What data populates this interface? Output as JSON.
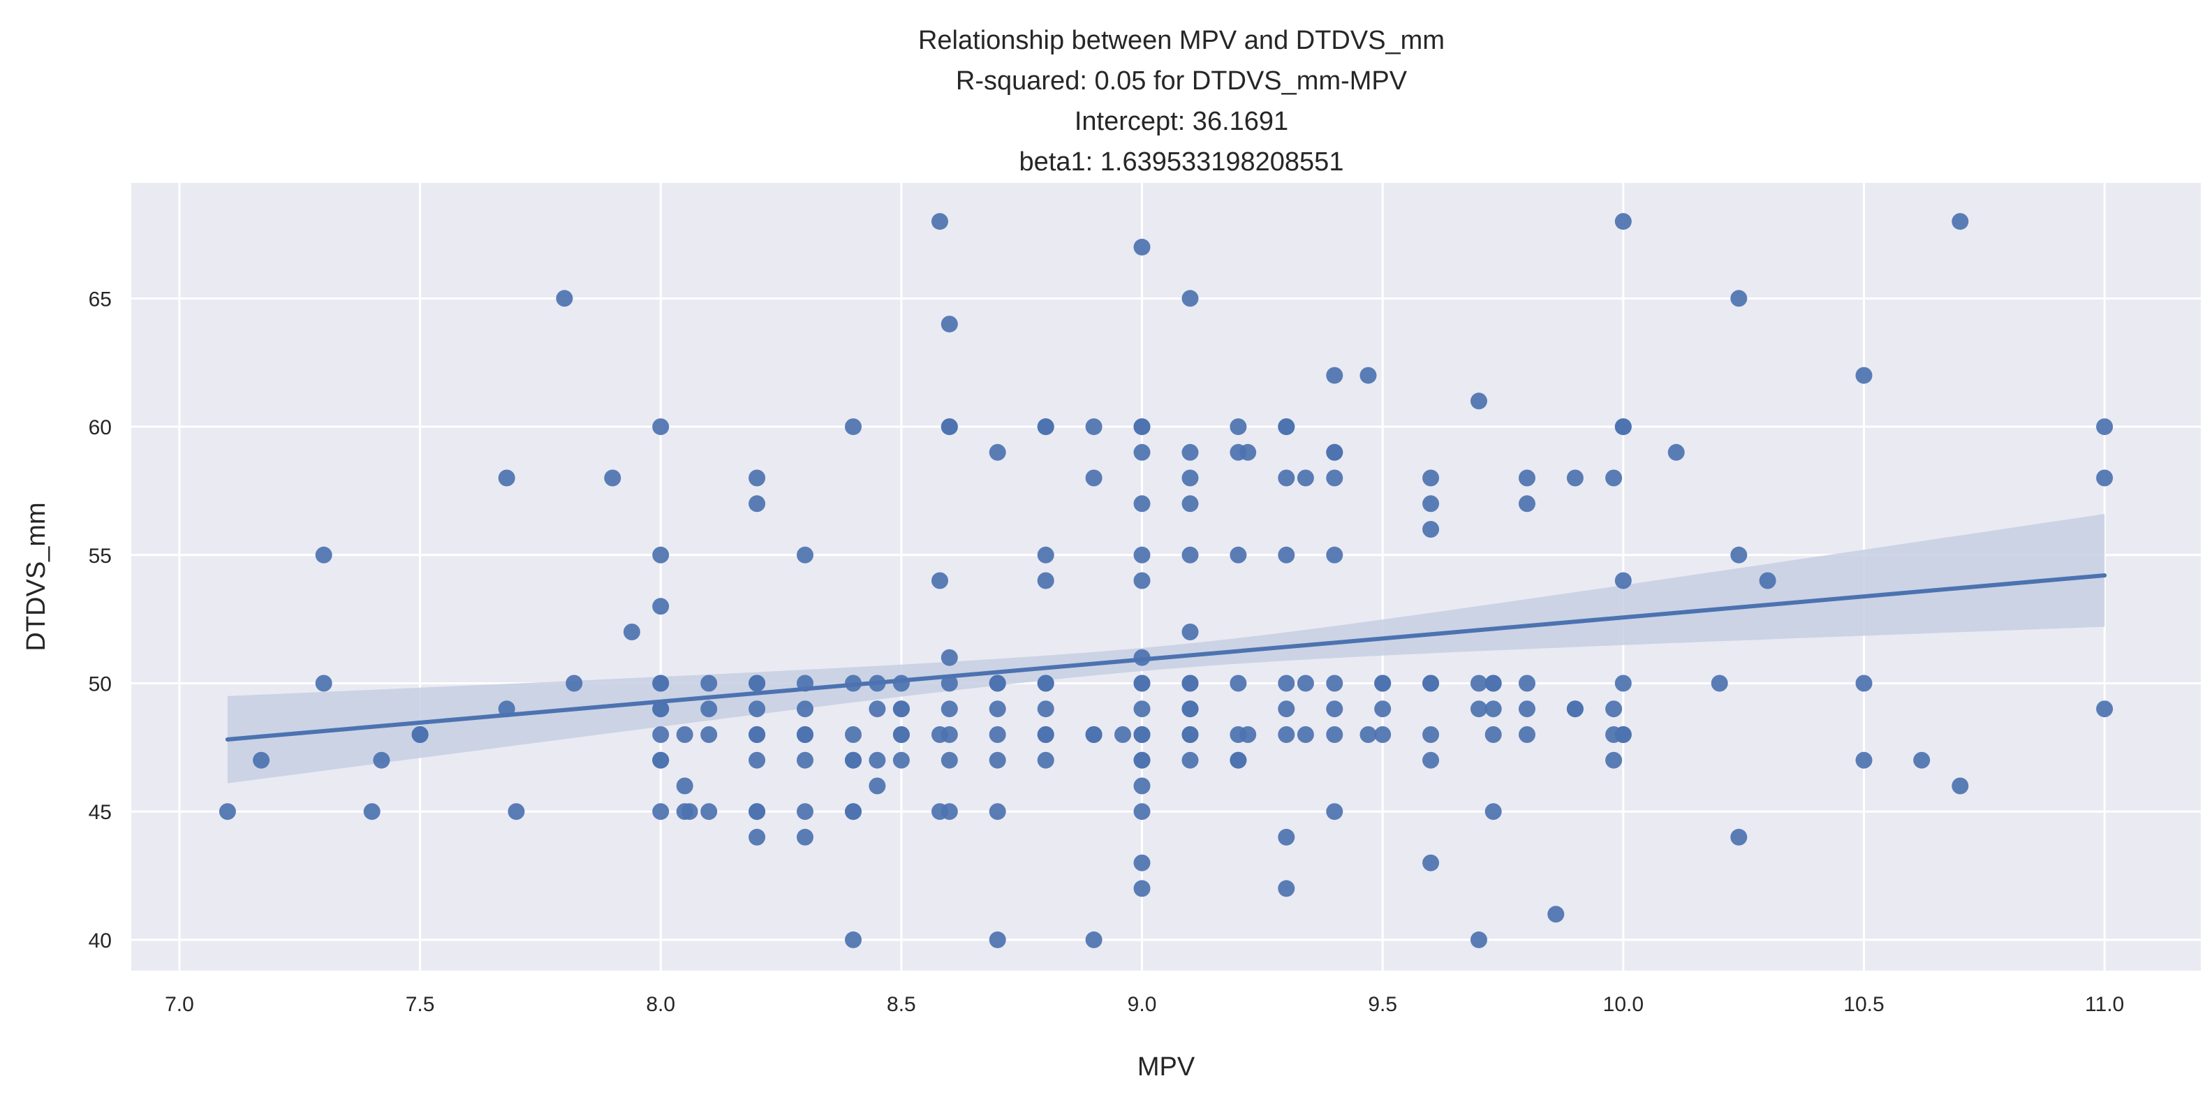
{
  "chart_data": {
    "type": "scatter",
    "title_lines": [
      "Relationship between MPV and DTDVS_mm",
      "R-squared: 0.05 for DTDVS_mm-MPV",
      "Intercept: 36.1691",
      "beta1: 1.639533198208551"
    ],
    "xlabel": "MPV",
    "ylabel": "DTDVS_mm",
    "xlim": [
      6.9,
      11.2
    ],
    "ylim": [
      38.8,
      69.5
    ],
    "x_ticks": [
      "7.0",
      "7.5",
      "8.0",
      "8.5",
      "9.0",
      "9.5",
      "10.0",
      "10.5",
      "11.0"
    ],
    "y_ticks": [
      "40",
      "45",
      "50",
      "55",
      "60",
      "65"
    ],
    "grid": true,
    "colors": {
      "background": "#eaeaf2",
      "grid": "#ffffff",
      "points": "#4c72b0",
      "line": "#4c72b0",
      "band": "#c5cfe3"
    },
    "regression": {
      "intercept": 36.1691,
      "slope": 1.639533198208551,
      "x_range": [
        7.1,
        11.0
      ],
      "ci_lower": [
        46.1,
        52.2
      ],
      "ci_upper": [
        49.5,
        56.6
      ]
    },
    "points": [
      [
        7.1,
        45
      ],
      [
        7.17,
        47
      ],
      [
        7.3,
        55
      ],
      [
        7.3,
        50
      ],
      [
        7.4,
        45
      ],
      [
        7.42,
        47
      ],
      [
        7.5,
        48
      ],
      [
        7.5,
        48
      ],
      [
        7.68,
        58
      ],
      [
        7.68,
        49
      ],
      [
        7.7,
        45
      ],
      [
        7.8,
        65
      ],
      [
        7.82,
        50
      ],
      [
        7.9,
        58
      ],
      [
        7.94,
        52
      ],
      [
        8.0,
        60
      ],
      [
        8.0,
        55
      ],
      [
        8.0,
        53
      ],
      [
        8.0,
        50
      ],
      [
        8.0,
        50
      ],
      [
        8.0,
        49
      ],
      [
        8.0,
        49
      ],
      [
        8.0,
        48
      ],
      [
        8.0,
        47
      ],
      [
        8.0,
        47
      ],
      [
        8.0,
        45
      ],
      [
        8.05,
        48
      ],
      [
        8.05,
        46
      ],
      [
        8.05,
        45
      ],
      [
        8.06,
        45
      ],
      [
        8.1,
        50
      ],
      [
        8.1,
        49
      ],
      [
        8.1,
        48
      ],
      [
        8.1,
        45
      ],
      [
        8.2,
        58
      ],
      [
        8.2,
        57
      ],
      [
        8.2,
        50
      ],
      [
        8.2,
        50
      ],
      [
        8.2,
        49
      ],
      [
        8.2,
        48
      ],
      [
        8.2,
        48
      ],
      [
        8.2,
        47
      ],
      [
        8.2,
        45
      ],
      [
        8.2,
        45
      ],
      [
        8.2,
        44
      ],
      [
        8.3,
        55
      ],
      [
        8.3,
        50
      ],
      [
        8.3,
        49
      ],
      [
        8.3,
        48
      ],
      [
        8.3,
        48
      ],
      [
        8.3,
        47
      ],
      [
        8.3,
        45
      ],
      [
        8.3,
        44
      ],
      [
        8.4,
        60
      ],
      [
        8.4,
        50
      ],
      [
        8.4,
        48
      ],
      [
        8.4,
        47
      ],
      [
        8.4,
        47
      ],
      [
        8.4,
        45
      ],
      [
        8.4,
        45
      ],
      [
        8.4,
        40
      ],
      [
        8.45,
        50
      ],
      [
        8.45,
        49
      ],
      [
        8.45,
        47
      ],
      [
        8.45,
        46
      ],
      [
        8.5,
        50
      ],
      [
        8.5,
        49
      ],
      [
        8.5,
        49
      ],
      [
        8.5,
        48
      ],
      [
        8.5,
        48
      ],
      [
        8.5,
        47
      ],
      [
        8.58,
        68
      ],
      [
        8.58,
        54
      ],
      [
        8.58,
        48
      ],
      [
        8.58,
        45
      ],
      [
        8.6,
        64
      ],
      [
        8.6,
        60
      ],
      [
        8.6,
        60
      ],
      [
        8.6,
        51
      ],
      [
        8.6,
        50
      ],
      [
        8.6,
        49
      ],
      [
        8.6,
        48
      ],
      [
        8.6,
        47
      ],
      [
        8.6,
        45
      ],
      [
        8.7,
        59
      ],
      [
        8.7,
        50
      ],
      [
        8.7,
        50
      ],
      [
        8.7,
        49
      ],
      [
        8.7,
        48
      ],
      [
        8.7,
        47
      ],
      [
        8.7,
        45
      ],
      [
        8.7,
        40
      ],
      [
        8.8,
        60
      ],
      [
        8.8,
        60
      ],
      [
        8.8,
        55
      ],
      [
        8.8,
        54
      ],
      [
        8.8,
        50
      ],
      [
        8.8,
        50
      ],
      [
        8.8,
        49
      ],
      [
        8.8,
        48
      ],
      [
        8.8,
        48
      ],
      [
        8.8,
        47
      ],
      [
        8.9,
        60
      ],
      [
        8.9,
        58
      ],
      [
        8.9,
        48
      ],
      [
        8.9,
        48
      ],
      [
        8.9,
        40
      ],
      [
        8.96,
        48
      ],
      [
        9.0,
        67
      ],
      [
        9.0,
        60
      ],
      [
        9.0,
        60
      ],
      [
        9.0,
        59
      ],
      [
        9.0,
        57
      ],
      [
        9.0,
        55
      ],
      [
        9.0,
        54
      ],
      [
        9.0,
        51
      ],
      [
        9.0,
        50
      ],
      [
        9.0,
        50
      ],
      [
        9.0,
        49
      ],
      [
        9.0,
        48
      ],
      [
        9.0,
        48
      ],
      [
        9.0,
        47
      ],
      [
        9.0,
        47
      ],
      [
        9.0,
        46
      ],
      [
        9.0,
        45
      ],
      [
        9.0,
        43
      ],
      [
        9.0,
        42
      ],
      [
        9.1,
        65
      ],
      [
        9.1,
        59
      ],
      [
        9.1,
        58
      ],
      [
        9.1,
        57
      ],
      [
        9.1,
        55
      ],
      [
        9.1,
        52
      ],
      [
        9.1,
        50
      ],
      [
        9.1,
        50
      ],
      [
        9.1,
        49
      ],
      [
        9.1,
        49
      ],
      [
        9.1,
        48
      ],
      [
        9.1,
        48
      ],
      [
        9.1,
        47
      ],
      [
        9.2,
        60
      ],
      [
        9.2,
        59
      ],
      [
        9.2,
        55
      ],
      [
        9.2,
        50
      ],
      [
        9.2,
        48
      ],
      [
        9.2,
        47
      ],
      [
        9.2,
        47
      ],
      [
        9.22,
        59
      ],
      [
        9.22,
        48
      ],
      [
        9.3,
        60
      ],
      [
        9.3,
        60
      ],
      [
        9.3,
        58
      ],
      [
        9.3,
        55
      ],
      [
        9.3,
        50
      ],
      [
        9.3,
        49
      ],
      [
        9.3,
        48
      ],
      [
        9.3,
        44
      ],
      [
        9.3,
        42
      ],
      [
        9.34,
        58
      ],
      [
        9.34,
        50
      ],
      [
        9.34,
        48
      ],
      [
        9.4,
        62
      ],
      [
        9.4,
        59
      ],
      [
        9.4,
        59
      ],
      [
        9.4,
        58
      ],
      [
        9.4,
        55
      ],
      [
        9.4,
        50
      ],
      [
        9.4,
        49
      ],
      [
        9.4,
        48
      ],
      [
        9.4,
        45
      ],
      [
        9.47,
        62
      ],
      [
        9.47,
        48
      ],
      [
        9.5,
        50
      ],
      [
        9.5,
        50
      ],
      [
        9.5,
        49
      ],
      [
        9.5,
        48
      ],
      [
        9.6,
        58
      ],
      [
        9.6,
        57
      ],
      [
        9.6,
        56
      ],
      [
        9.6,
        50
      ],
      [
        9.6,
        50
      ],
      [
        9.6,
        48
      ],
      [
        9.6,
        47
      ],
      [
        9.6,
        43
      ],
      [
        9.7,
        61
      ],
      [
        9.7,
        50
      ],
      [
        9.7,
        49
      ],
      [
        9.7,
        40
      ],
      [
        9.73,
        50
      ],
      [
        9.73,
        50
      ],
      [
        9.73,
        49
      ],
      [
        9.73,
        48
      ],
      [
        9.73,
        45
      ],
      [
        9.8,
        58
      ],
      [
        9.8,
        57
      ],
      [
        9.8,
        50
      ],
      [
        9.8,
        49
      ],
      [
        9.8,
        48
      ],
      [
        9.86,
        41
      ],
      [
        9.9,
        58
      ],
      [
        9.9,
        49
      ],
      [
        9.9,
        49
      ],
      [
        9.98,
        58
      ],
      [
        9.98,
        49
      ],
      [
        9.98,
        48
      ],
      [
        9.98,
        47
      ],
      [
        10.0,
        68
      ],
      [
        10.0,
        60
      ],
      [
        10.0,
        60
      ],
      [
        10.0,
        54
      ],
      [
        10.0,
        50
      ],
      [
        10.0,
        48
      ],
      [
        10.0,
        48
      ],
      [
        10.11,
        59
      ],
      [
        10.2,
        50
      ],
      [
        10.24,
        65
      ],
      [
        10.24,
        55
      ],
      [
        10.24,
        44
      ],
      [
        10.3,
        54
      ],
      [
        10.5,
        62
      ],
      [
        10.5,
        50
      ],
      [
        10.5,
        47
      ],
      [
        10.62,
        47
      ],
      [
        10.7,
        68
      ],
      [
        10.7,
        46
      ],
      [
        11.0,
        60
      ],
      [
        11.0,
        58
      ],
      [
        11.0,
        49
      ]
    ]
  }
}
